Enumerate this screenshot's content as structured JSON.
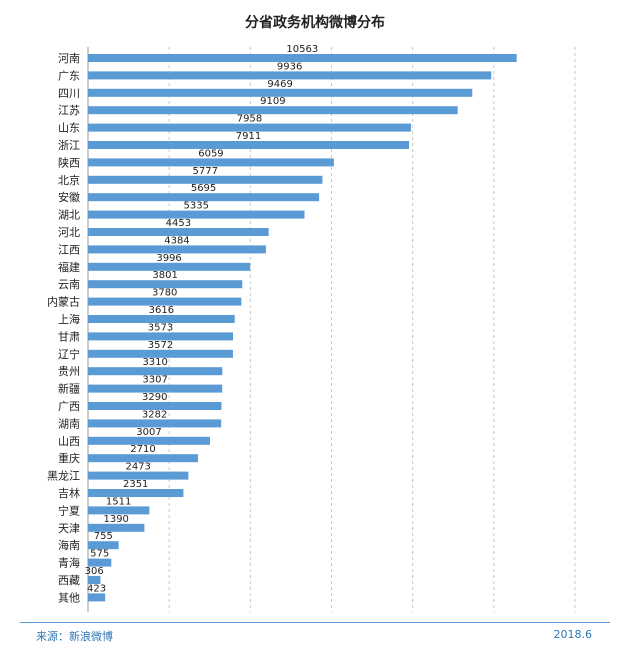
{
  "chart_data": {
    "type": "bar",
    "orientation": "horizontal",
    "title": "分省政务机构微博分布",
    "categories": [
      "河南",
      "广东",
      "四川",
      "江苏",
      "山东",
      "浙江",
      "陕西",
      "北京",
      "安徽",
      "湖北",
      "河北",
      "江西",
      "福建",
      "云南",
      "内蒙古",
      "上海",
      "甘肃",
      "辽宁",
      "贵州",
      "新疆",
      "广西",
      "湖南",
      "山西",
      "重庆",
      "黑龙江",
      "吉林",
      "宁夏",
      "天津",
      "海南",
      "青海",
      "西藏",
      "其他"
    ],
    "values": [
      10563,
      9936,
      9469,
      9109,
      7958,
      7911,
      6059,
      5777,
      5695,
      5335,
      4453,
      4384,
      3996,
      3801,
      3780,
      3616,
      3573,
      3572,
      3310,
      3307,
      3290,
      3282,
      3007,
      2710,
      2473,
      2351,
      1511,
      1390,
      755,
      575,
      306,
      423
    ],
    "xlim": [
      0,
      12000
    ],
    "grid": true,
    "bar_color": "#5b9bd5",
    "label_color": "#222222"
  },
  "footer": {
    "source": "来源：新浪微博",
    "date": "2018.6"
  }
}
